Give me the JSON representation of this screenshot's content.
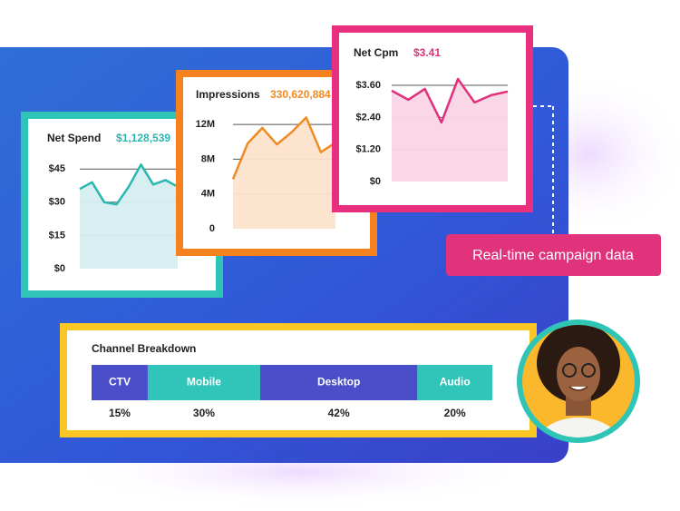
{
  "chart_data": [
    {
      "type": "area",
      "title": "Net Spend",
      "subtitle": "$1,128,539",
      "color": "#2ab7b0",
      "fill": "#d6eef0",
      "frame": "#2ec4b6",
      "values": [
        36,
        39,
        30,
        29,
        37,
        47,
        38,
        40,
        37
      ],
      "ylim": [
        0,
        50
      ],
      "yticks": [
        {
          "value": 0,
          "label": "$0"
        },
        {
          "value": 15,
          "label": "$15"
        },
        {
          "value": 30,
          "label": "$30"
        },
        {
          "value": 45,
          "label": "$45"
        }
      ],
      "grid": true
    },
    {
      "type": "area",
      "title": "Impressions",
      "subtitle": "330,620,884",
      "color": "#f08a24",
      "fill": "#fde3cb",
      "frame": "#f5821f",
      "values": [
        5700000,
        9800000,
        11600000,
        9700000,
        11100000,
        12800000,
        8800000,
        9900000
      ],
      "ylim": [
        0,
        13000000
      ],
      "yticks": [
        0,
        {
          "value": 4000000,
          "label": "4M"
        },
        {
          "value": 8000000,
          "label": "8M"
        },
        {
          "value": 12000000,
          "label": "12M"
        }
      ],
      "grid": true
    },
    {
      "type": "area",
      "title": "Net Cpm",
      "subtitle": "$3.41",
      "color": "#e0307c",
      "fill": "#f9d5e5",
      "frame": "#e8307f",
      "values": [
        3.4,
        3.06,
        3.47,
        2.21,
        3.84,
        2.96,
        3.23,
        3.37
      ],
      "ylim": [
        0,
        3.9
      ],
      "yticks": [
        {
          "value": 0,
          "label": "$0"
        },
        {
          "value": 1.2,
          "label": "$1.20"
        },
        {
          "value": 2.4,
          "label": "$2.40"
        },
        {
          "value": 3.6,
          "label": "$3.60"
        }
      ],
      "grid": true
    },
    {
      "type": "stacked-bar",
      "title": "Channel Breakdown",
      "frame": "#f9c623",
      "categories": [
        "CTV",
        "Mobile",
        "Desktop",
        "Audio"
      ],
      "values": [
        15,
        30,
        42,
        20
      ],
      "value_labels": [
        "15%",
        "30%",
        "42%",
        "20%"
      ],
      "colors": [
        "#4a4fc9",
        "#30c5b8",
        "#4a4fc9",
        "#30c5b8"
      ]
    }
  ],
  "callout": "Real-time campaign data"
}
